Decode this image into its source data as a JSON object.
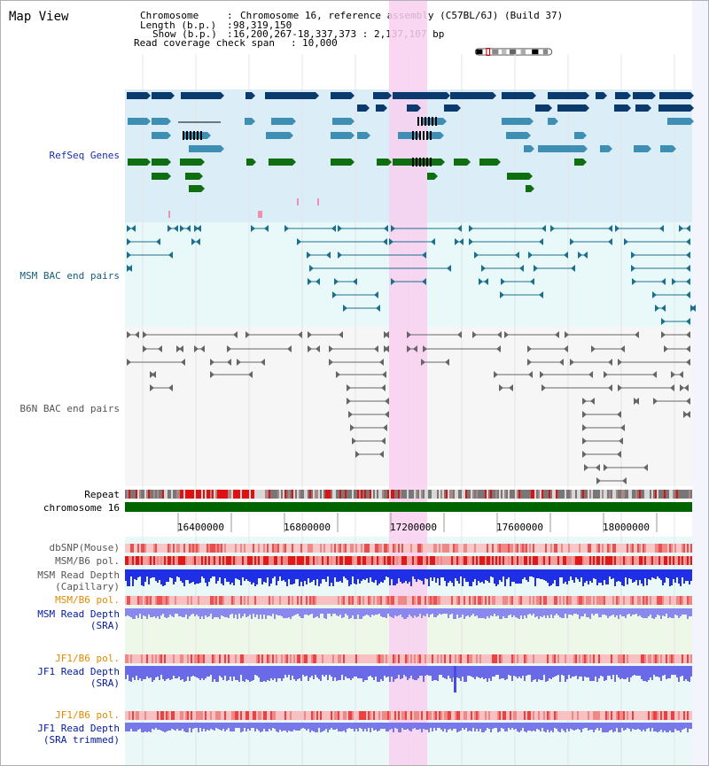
{
  "app": {
    "title": "Map View"
  },
  "info": {
    "chromosome_key": "Chromosome",
    "chromosome_val": "Chromosome 16, reference assembly (C57BL/6J) (Build 37)",
    "length_key": "Length (b.p.)",
    "length_val": "98,319,150",
    "show_key": "Show (b.p.)",
    "show_val": "16,200,267-18,337,373 : 2,137,107 bp",
    "coverage_key": "Read coverage check span",
    "coverage_val": "10,000"
  },
  "tracks": {
    "refseq": "RefSeq Genes",
    "msm_bac": "MSM BAC end pairs",
    "b6n_bac": "B6N BAC end pairs",
    "repeat": "Repeat",
    "chromosome": "chromosome 16",
    "dbsnp": "dbSNP(Mouse)",
    "msm_b6_pol": "MSM/B6 pol.",
    "msm_depth_cap_1": "MSM Read Depth",
    "msm_depth_cap_2": "(Capillary)",
    "msm_b6_pol_2": "MSM/B6 pol.",
    "msm_depth_sra_1": "MSM Read Depth",
    "msm_depth_sra_2": "(SRA)",
    "jf1_b6_pol": "JF1/B6 pol.",
    "jf1_depth_sra_1": "JF1 Read Depth",
    "jf1_depth_sra_2": "(SRA)",
    "jf1_b6_pol_2": "JF1/B6 pol.",
    "jf1_depth_trim_1": "JF1 Read Depth",
    "jf1_depth_trim_2": "(SRA trimmed)"
  },
  "axis": {
    "ticks": [
      "16400000",
      "16800000",
      "17200000",
      "17600000",
      "18000000"
    ]
  },
  "colors": {
    "refseq_bg": "#dbeef7",
    "bac_bg": "#e9f8f8",
    "highlight": "#f8d0f0",
    "refseq_dark": "#0b3a6e",
    "refseq_mid": "#3f8fb5",
    "refseq_green": "#0f6e0f",
    "msm_line": "#1b6f8f",
    "b6n_line": "#555555",
    "chromosome_bar": "#006400",
    "snp_low": "#f8c8c8",
    "snp_high": "#e01818",
    "depth_blue": "#1f2fe6",
    "depth_light": "#8888ee",
    "jf1_pol_orange": "#e08a00"
  }
}
